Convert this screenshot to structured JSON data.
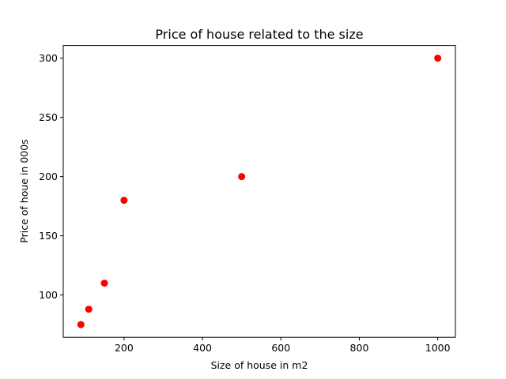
{
  "chart_data": {
    "type": "scatter",
    "title": "Price of house related to the size",
    "xlabel": "Size of house in m2",
    "ylabel": "Price of houe in 000s",
    "xlim": [
      45,
      1045
    ],
    "ylim": [
      64.25,
      310.75
    ],
    "xticks": [
      200,
      400,
      600,
      800,
      1000
    ],
    "yticks": [
      100,
      150,
      200,
      250,
      300
    ],
    "grid": false,
    "series": [
      {
        "color": "#ff0000",
        "points": [
          {
            "x": 90,
            "y": 75
          },
          {
            "x": 110,
            "y": 88
          },
          {
            "x": 150,
            "y": 110
          },
          {
            "x": 200,
            "y": 180
          },
          {
            "x": 500,
            "y": 200
          },
          {
            "x": 1000,
            "y": 300
          }
        ]
      }
    ]
  }
}
